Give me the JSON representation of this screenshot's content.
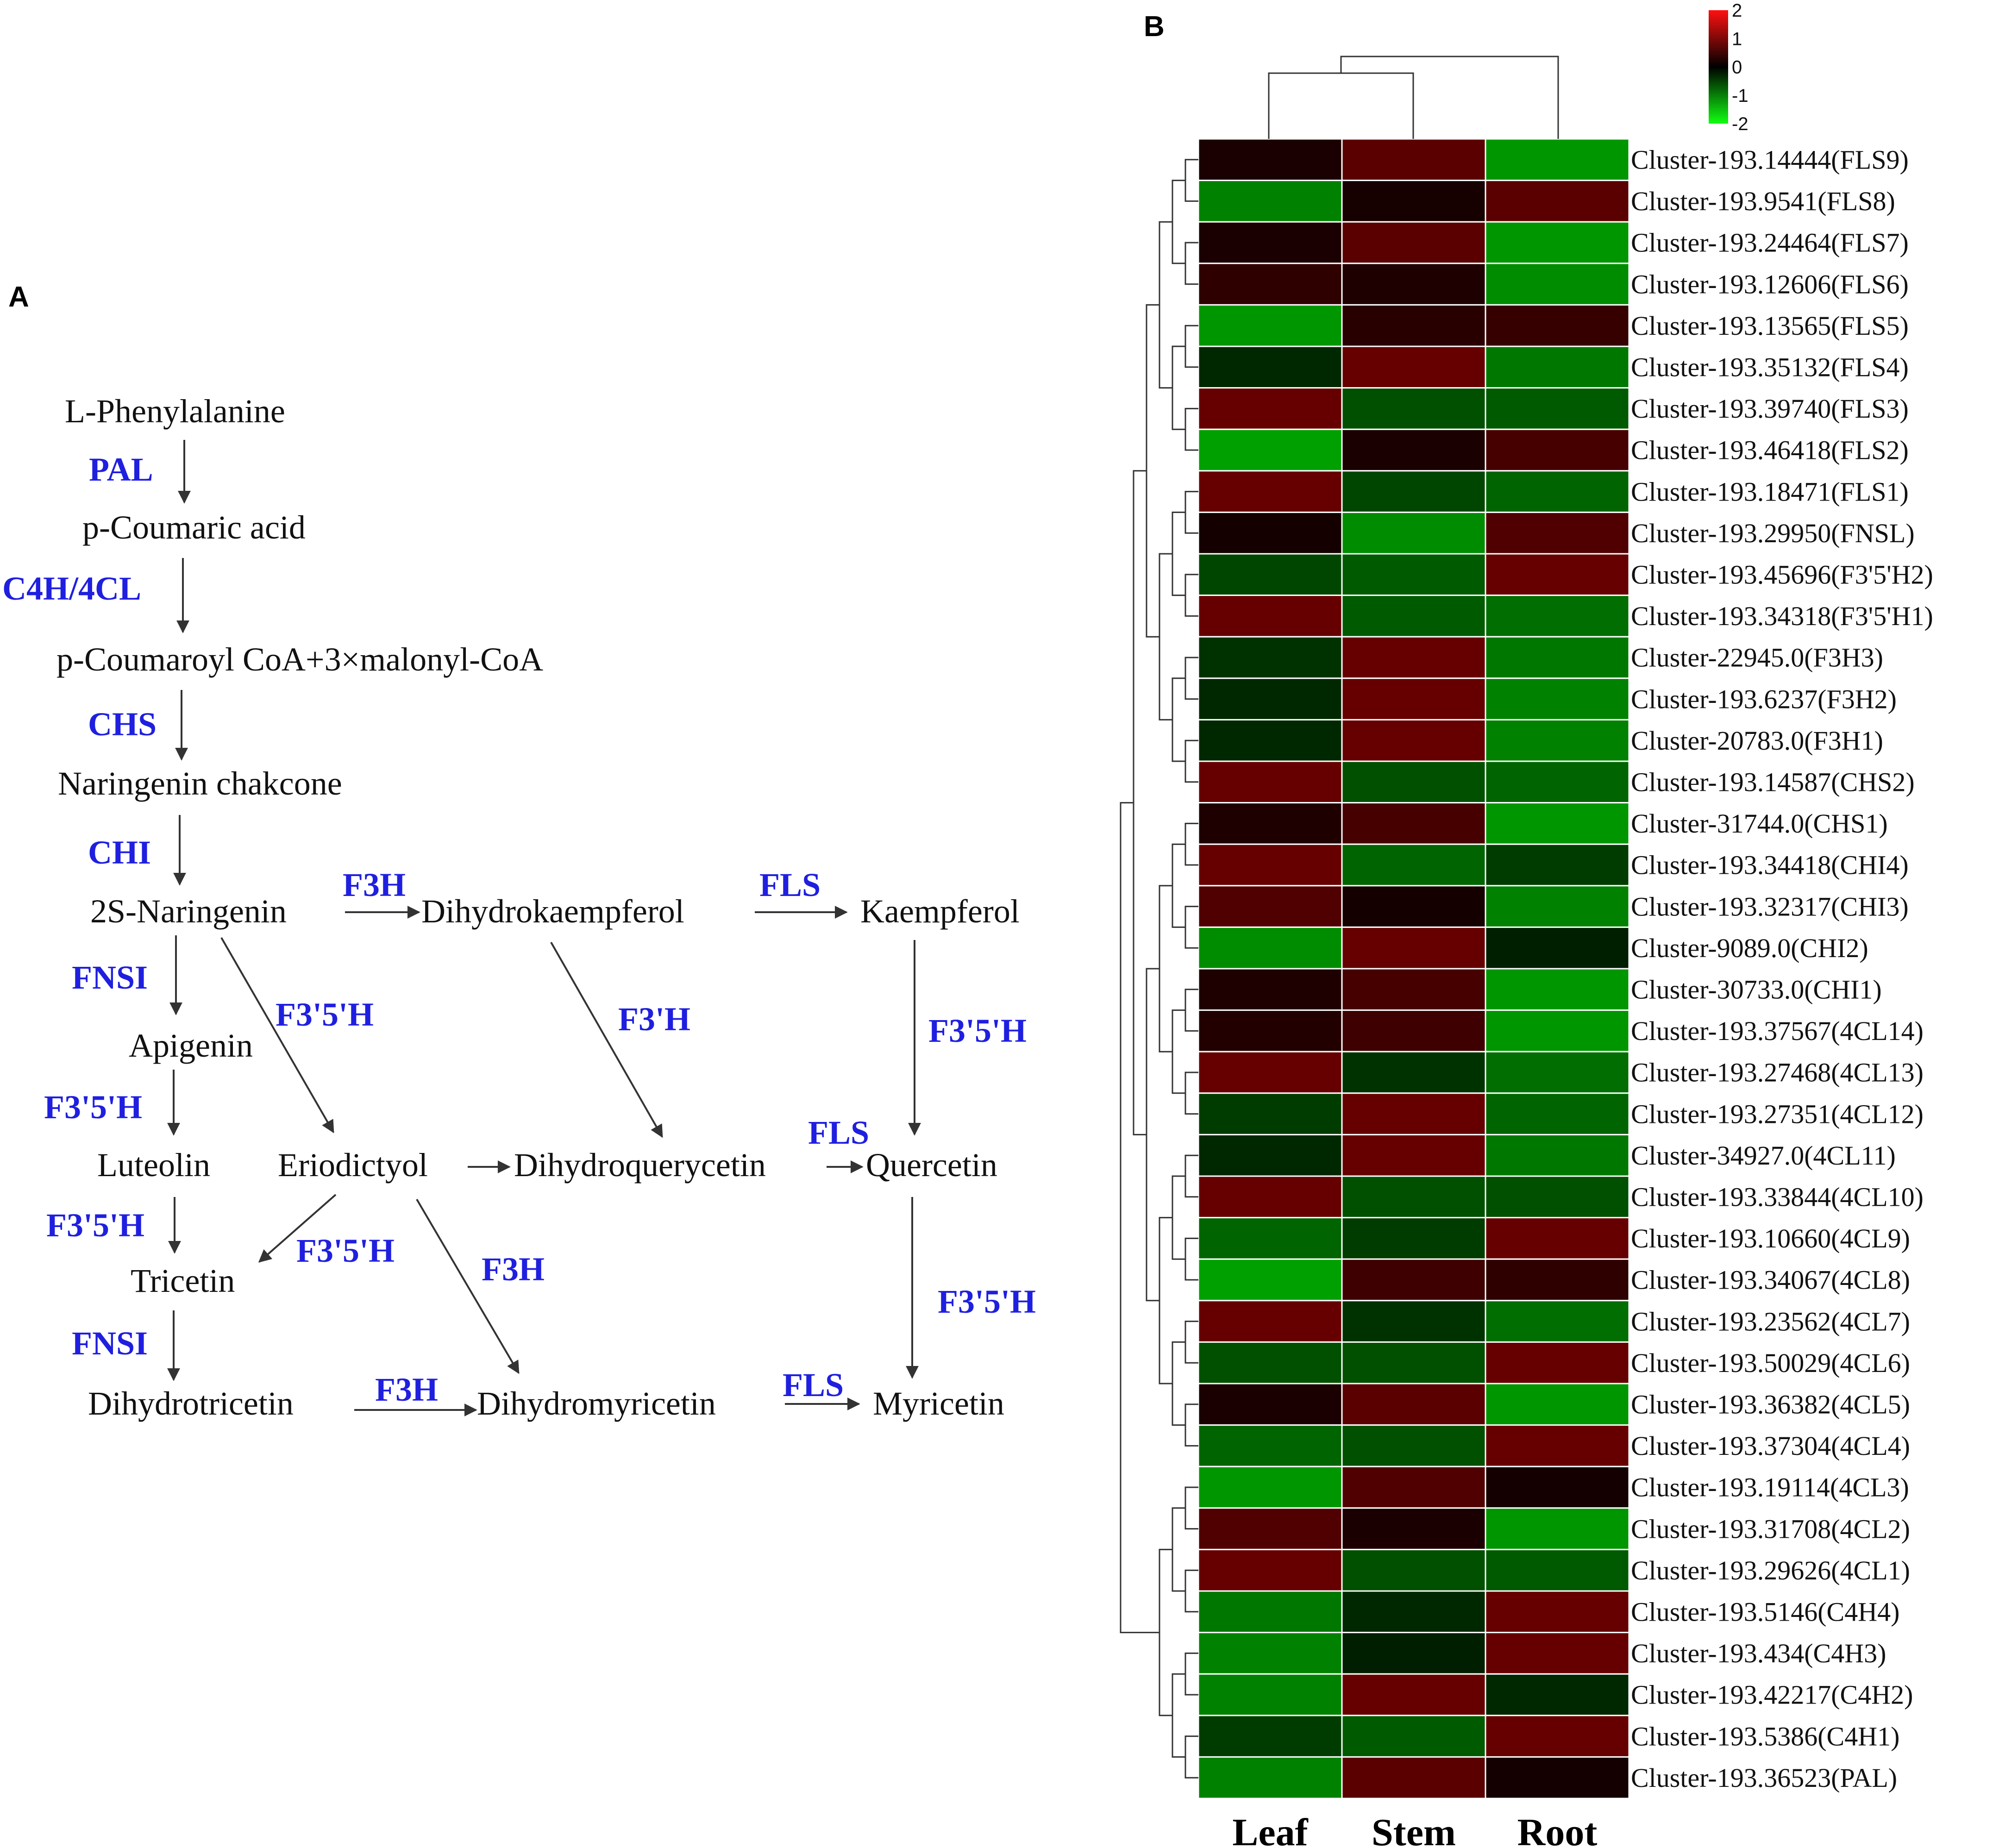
{
  "panels": {
    "a": "A",
    "b": "B"
  },
  "pathway": {
    "compounds": {
      "l_phenylalanine": "L-Phenylalanine",
      "p_coumaric_acid": "p-Coumaric acid",
      "p_coumaroyl_coa": "p-Coumaroyl CoA+3×malonyl-CoA",
      "naringenin_chalcone": "Naringenin chakcone",
      "naringenin": "2S-Naringenin",
      "dihydrokaempferol": "Dihydrokaempferol",
      "kaempferol": "Kaempferol",
      "apigenin": "Apigenin",
      "luteolin": "Luteolin",
      "eriodictyol": "Eriodictyol",
      "dihydroquercetin": "Dihydroquerycetin",
      "quercetin": "Quercetin",
      "tricetin": "Tricetin",
      "dihydrotricetin": "Dihydrotricetin",
      "dihydromyricetin": "Dihydromyricetin",
      "myricetin": "Myricetin"
    },
    "enzymes": {
      "pal": "PAL",
      "c4h_4cl": "C4H/4CL",
      "chs": "CHS",
      "chi": "CHI",
      "f3h_top": "F3H",
      "fls_top": "FLS",
      "fnsi_1": "FNSI",
      "f35h_diag": "F3'5'H",
      "f3h_prime": "F3'H",
      "f35h_right_1": "F3'5'H",
      "f35h_left_1": "F3'5'H",
      "fls_mid": "FLS",
      "f35h_left_2": "F3'5'H",
      "f35h_mid": "F3'5'H",
      "f3h_mid": "F3H",
      "f35h_right_2": "F3'5'H",
      "fnsi_2": "FNSI",
      "f3h_bottom": "F3H",
      "fls_bottom": "FLS"
    }
  },
  "colorbar": {
    "ticks": [
      "2",
      "1",
      "0",
      "-1",
      "-2"
    ],
    "colors": {
      "high": "#e00000",
      "mid": "#000000",
      "low": "#00ee00"
    }
  },
  "chart_data": {
    "type": "heatmap",
    "columns": [
      "Leaf",
      "Stem",
      "Root"
    ],
    "value_range": [
      -2,
      2
    ],
    "rows": [
      {
        "label": "Cluster-193.14444(FLS9)",
        "values": [
          0.2,
          1.1,
          -1.3
        ]
      },
      {
        "label": "Cluster-193.9541(FLS8)",
        "values": [
          -1.1,
          0.1,
          1.1
        ]
      },
      {
        "label": "Cluster-193.24464(FLS7)",
        "values": [
          0.2,
          1.1,
          -1.3
        ]
      },
      {
        "label": "Cluster-193.12606(FLS6)",
        "values": [
          0.6,
          0.3,
          -1.2
        ]
      },
      {
        "label": "Cluster-193.13565(FLS5)",
        "values": [
          -1.3,
          0.5,
          0.7
        ]
      },
      {
        "label": "Cluster-193.35132(FLS4)",
        "values": [
          -0.2,
          1.2,
          -1.0
        ]
      },
      {
        "label": "Cluster-193.39740(FLS3)",
        "values": [
          1.2,
          -0.6,
          -0.7
        ]
      },
      {
        "label": "Cluster-193.46418(FLS2)",
        "values": [
          -1.4,
          0.2,
          0.9
        ]
      },
      {
        "label": "Cluster-193.18471(FLS1)",
        "values": [
          1.2,
          -0.5,
          -0.8
        ]
      },
      {
        "label": "Cluster-193.29950(FNSL)",
        "values": [
          0.05,
          -1.2,
          1.0
        ]
      },
      {
        "label": "Cluster-193.45696(F3'5'H2)",
        "values": [
          -0.5,
          -0.7,
          1.2
        ]
      },
      {
        "label": "Cluster-193.34318(F3'5'H1)",
        "values": [
          1.2,
          -0.7,
          -0.9
        ]
      },
      {
        "label": "Cluster-22945.0(F3H3)",
        "values": [
          -0.3,
          1.2,
          -1.0
        ]
      },
      {
        "label": "Cluster-193.6237(F3H2)",
        "values": [
          -0.2,
          1.2,
          -1.1
        ]
      },
      {
        "label": "Cluster-20783.0(F3H1)",
        "values": [
          -0.2,
          1.2,
          -1.1
        ]
      },
      {
        "label": "Cluster-193.14587(CHS2)",
        "values": [
          1.2,
          -0.6,
          -0.8
        ]
      },
      {
        "label": "Cluster-31744.0(CHS1)",
        "values": [
          0.3,
          0.9,
          -1.3
        ]
      },
      {
        "label": "Cluster-193.34418(CHI4)",
        "values": [
          1.2,
          -0.8,
          -0.4
        ]
      },
      {
        "label": "Cluster-193.32317(CHI3)",
        "values": [
          1.0,
          0.05,
          -1.1
        ]
      },
      {
        "label": "Cluster-9089.0(CHI2)",
        "values": [
          -1.2,
          1.2,
          -0.1
        ]
      },
      {
        "label": "Cluster-30733.0(CHI1)",
        "values": [
          0.3,
          0.9,
          -1.3
        ]
      },
      {
        "label": "Cluster-193.37567(4CL14)",
        "values": [
          0.4,
          0.8,
          -1.3
        ]
      },
      {
        "label": "Cluster-193.27468(4CL13)",
        "values": [
          1.2,
          -0.3,
          -0.9
        ]
      },
      {
        "label": "Cluster-193.27351(4CL12)",
        "values": [
          -0.4,
          1.2,
          -0.8
        ]
      },
      {
        "label": "Cluster-34927.0(4CL11)",
        "values": [
          -0.2,
          1.2,
          -1.0
        ]
      },
      {
        "label": "Cluster-193.33844(4CL10)",
        "values": [
          1.2,
          -0.6,
          -0.6
        ]
      },
      {
        "label": "Cluster-193.10660(4CL9)",
        "values": [
          -0.8,
          -0.4,
          1.2
        ]
      },
      {
        "label": "Cluster-193.34067(4CL8)",
        "values": [
          -1.4,
          0.8,
          0.6
        ]
      },
      {
        "label": "Cluster-193.23562(4CL7)",
        "values": [
          1.2,
          -0.3,
          -0.9
        ]
      },
      {
        "label": "Cluster-193.50029(4CL6)",
        "values": [
          -0.6,
          -0.6,
          1.2
        ]
      },
      {
        "label": "Cluster-193.36382(4CL5)",
        "values": [
          0.2,
          1.1,
          -1.3
        ]
      },
      {
        "label": "Cluster-193.37304(4CL4)",
        "values": [
          -0.8,
          -0.6,
          1.2
        ]
      },
      {
        "label": "Cluster-193.19114(4CL3)",
        "values": [
          -1.3,
          1.0,
          0.0
        ]
      },
      {
        "label": "Cluster-193.31708(4CL2)",
        "values": [
          1.0,
          0.2,
          -1.3
        ]
      },
      {
        "label": "Cluster-193.29626(4CL1)",
        "values": [
          1.2,
          -0.6,
          -0.7
        ]
      },
      {
        "label": "Cluster-193.5146(C4H4)",
        "values": [
          -1.0,
          -0.2,
          1.2
        ]
      },
      {
        "label": "Cluster-193.434(C4H3)",
        "values": [
          -1.1,
          -0.1,
          1.2
        ]
      },
      {
        "label": "Cluster-193.42217(C4H2)",
        "values": [
          -1.1,
          1.2,
          -0.2
        ]
      },
      {
        "label": "Cluster-193.5386(C4H1)",
        "values": [
          -0.4,
          -0.7,
          1.2
        ]
      },
      {
        "label": "Cluster-193.36523(PAL)",
        "values": [
          -1.1,
          1.1,
          0.02
        ]
      }
    ]
  }
}
